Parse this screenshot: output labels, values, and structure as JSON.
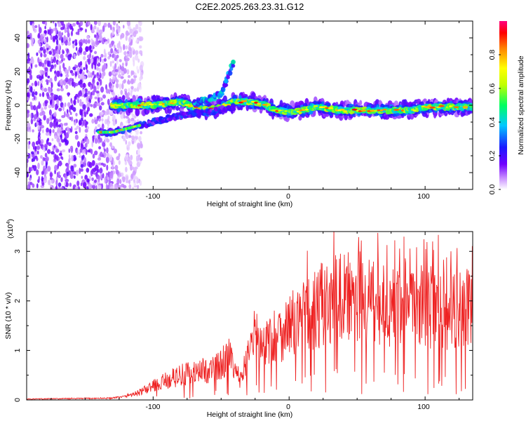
{
  "title": "C2E2.2025.263.23.31.G12",
  "chart_data": [
    {
      "type": "heatmap",
      "title": "C2E2.2025.263.23.31.G12",
      "xlabel": "Height of straight line (km)",
      "ylabel": "Frequency (Hz)",
      "xlim": [
        -193,
        135
      ],
      "ylim": [
        -50,
        50
      ],
      "x_ticks": [
        -100,
        0,
        100
      ],
      "y_ticks": [
        -40,
        -20,
        0,
        20,
        40
      ],
      "colorbar": {
        "label": "Normalized spectral amplitude",
        "range": [
          0,
          1
        ],
        "ticks": [
          0.0,
          0.2,
          0.4,
          0.6,
          0.8
        ]
      },
      "main_trace": {
        "name": "main frequency ridge",
        "x": [
          -130,
          -120,
          -110,
          -100,
          -90,
          -80,
          -70,
          -60,
          -50,
          -40,
          -30,
          -20,
          -10,
          0,
          10,
          20,
          30,
          40,
          50,
          60,
          70,
          80,
          90,
          100,
          110,
          120,
          135
        ],
        "y": [
          0,
          0,
          0,
          0,
          1,
          2,
          -1,
          -3,
          -1,
          2,
          2,
          1,
          -3,
          -4,
          -3,
          -1,
          -2,
          -3,
          -3,
          -3,
          -3,
          -3,
          -3,
          -1,
          -1,
          -1,
          -1
        ]
      },
      "upper_branch": {
        "name": "rising branch",
        "x": [
          -70,
          -60,
          -50,
          -45,
          -40
        ],
        "y": [
          1,
          3,
          7,
          17,
          27
        ]
      },
      "lower_branch": {
        "name": "low-frequency segment",
        "x": [
          -140,
          -130,
          -120,
          -110,
          -100,
          -90,
          -80,
          -70,
          -60,
          -50,
          -40
        ],
        "y": [
          -16,
          -16,
          -14,
          -12,
          -10,
          -8,
          -6,
          -5,
          -4,
          -3,
          -1
        ]
      },
      "noise_region": {
        "x_range": [
          -193,
          -120
        ],
        "y_range": [
          -50,
          50
        ]
      }
    },
    {
      "type": "line",
      "xlabel": "Height of straight line (km)",
      "ylabel": "SNR (10 * v/v)",
      "y_scale_label": "(x10⁴)",
      "xlim": [
        -193,
        135
      ],
      "ylim": [
        0,
        3.4
      ],
      "x_ticks": [
        -100,
        0,
        100
      ],
      "y_ticks": [
        0,
        1,
        2,
        3
      ],
      "series": [
        {
          "name": "SNR",
          "color": "#ee2222",
          "envelope_x": [
            -193,
            -130,
            -120,
            -110,
            -100,
            -90,
            -80,
            -70,
            -60,
            -50,
            -45,
            -40,
            -35,
            -30,
            -25,
            -20,
            -15,
            -10,
            0,
            10,
            20,
            30,
            40,
            50,
            60,
            70,
            80,
            90,
            100,
            110,
            120,
            135
          ],
          "envelope_y": [
            0.02,
            0.04,
            0.08,
            0.15,
            0.28,
            0.4,
            0.5,
            0.55,
            0.6,
            0.7,
            0.95,
            0.55,
            0.4,
            1.0,
            1.3,
            1.1,
            1.2,
            1.3,
            1.5,
            1.7,
            1.85,
            2.05,
            2.1,
            2.1,
            2.0,
            1.95,
            1.9,
            1.85,
            1.9,
            1.85,
            1.8,
            1.9
          ]
        }
      ]
    }
  ],
  "labels": {
    "heat_xlabel": "Height of straight line (km)",
    "heat_ylabel": "Frequency (Hz)",
    "colorbar_label": "Normalized spectral amplitude",
    "snr_xlabel": "Height of straight line (km)",
    "snr_ylabel": "SNR (10 * v/v)",
    "snr_scale_base": "(x10",
    "snr_scale_exp": "4",
    "snr_scale_close": ")"
  },
  "tick_text": {
    "heat_x": [
      "-100",
      "0",
      "100"
    ],
    "heat_y": [
      "-40",
      "-20",
      "0",
      "20",
      "40"
    ],
    "cbar": [
      "0.0",
      "0.2",
      "0.4",
      "0.6",
      "0.8"
    ],
    "snr_x": [
      "-100",
      "0",
      "100"
    ],
    "snr_y": [
      "0",
      "1",
      "2",
      "3"
    ]
  }
}
